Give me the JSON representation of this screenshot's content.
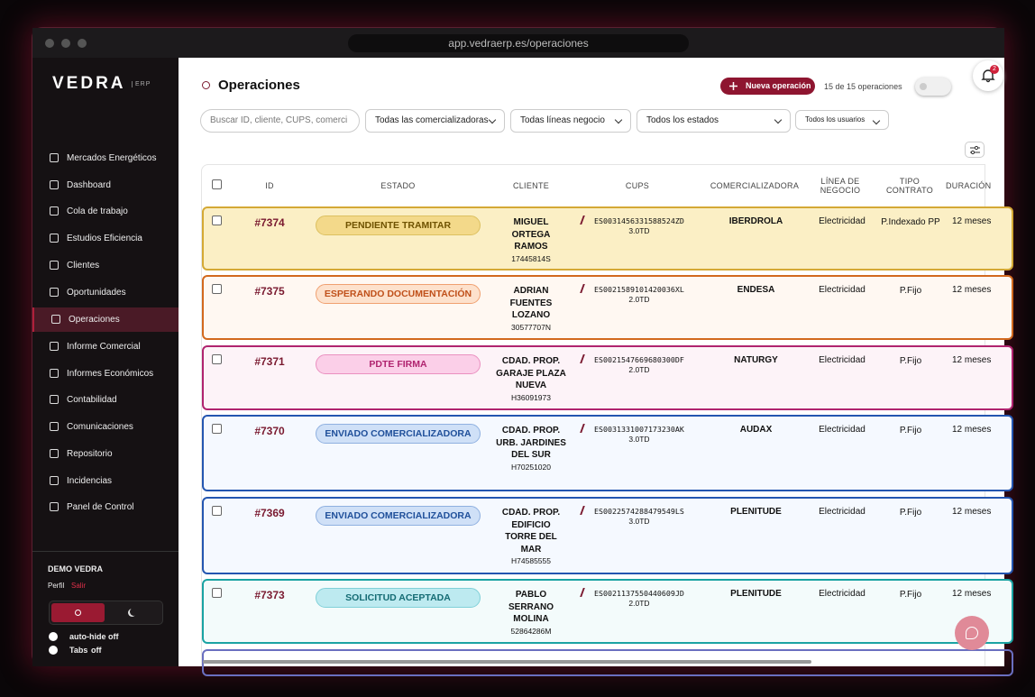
{
  "browser": {
    "url": "app.vedraerp.es/operaciones"
  },
  "sidebar": {
    "logo": "VEDRA",
    "logo_tag": "ERP",
    "menu": [
      "Mercados Energéticos",
      "Dashboard",
      "Cola de trabajo",
      "Estudios Eficiencia",
      "Clientes",
      "Oportunidades",
      "Operaciones",
      "Informe Comercial",
      "Informes Económicos",
      "Contabilidad",
      "Comunicaciones",
      "Repositorio",
      "Incidencias",
      "Panel de Control"
    ],
    "user": "DEMO VEDRA",
    "profile": "Perfil",
    "logout": "Salir",
    "settings": [
      {
        "label": "auto-hide",
        "state": "off"
      },
      {
        "label": "Tabs",
        "state": "off"
      }
    ]
  },
  "header": {
    "title": "Operaciones",
    "new_button": "Nueva operación",
    "count": "15 de 15 operaciones",
    "notifications": "2"
  },
  "filters": {
    "search": "Buscar ID, cliente, CUPS, comerci",
    "selects": [
      "Todas las comercializadoras",
      "Todas líneas negocio",
      "Todos los estados",
      "Todos los usuarios"
    ]
  },
  "table": {
    "columns": [
      "ID",
      "ESTADO",
      "CLIENTE",
      "CUPS",
      "COMERCIALIZADORA",
      "LÍNEA DE NEGOCIO",
      "TIPO CONTRATO",
      "DURACIÓN"
    ],
    "rows": [
      {
        "id": "#7374",
        "estado": "PENDIENTE TRAMITAR",
        "cliente": "MIGUEL ORTEGA RAMOS",
        "documento": "17445814S",
        "cups": "ES0031456331588524ZD",
        "tarifa": "3.0TD",
        "comercializadora": "IBERDROLA",
        "linea": "Electricidad",
        "tipo": "P.Indexado PP",
        "duracion": "12 meses"
      },
      {
        "id": "#7375",
        "estado": "ESPERANDO DOCUMENTACIÓN",
        "cliente": "ADRIAN FUENTES LOZANO",
        "documento": "30577707N",
        "cups": "ES0021589101420036XL",
        "tarifa": "2.0TD",
        "comercializadora": "ENDESA",
        "linea": "Electricidad",
        "tipo": "P.Fijo",
        "duracion": "12 meses"
      },
      {
        "id": "#7371",
        "estado": "PDTE FIRMA",
        "cliente": "CDAD. PROP. GARAJE PLAZA NUEVA",
        "documento": "H36091973",
        "cups": "ES0021547669680300DF",
        "tarifa": "2.0TD",
        "comercializadora": "NATURGY",
        "linea": "Electricidad",
        "tipo": "P.Fijo",
        "duracion": "12 meses"
      },
      {
        "id": "#7370",
        "estado": "ENVIADO COMERCIALIZADORA",
        "cliente": "CDAD. PROP. URB. JARDINES DEL SUR",
        "documento": "H70251020",
        "cups": "ES0031331007173230AK",
        "tarifa": "3.0TD",
        "comercializadora": "AUDAX",
        "linea": "Electricidad",
        "tipo": "P.Fijo",
        "duracion": "12 meses"
      },
      {
        "id": "#7369",
        "estado": "ENVIADO COMERCIALIZADORA",
        "cliente": "CDAD. PROP. EDIFICIO TORRE DEL MAR",
        "documento": "H74585555",
        "cups": "ES0022574288479549LS",
        "tarifa": "3.0TD",
        "comercializadora": "PLENITUDE",
        "linea": "Electricidad",
        "tipo": "P.Fijo",
        "duracion": "12 meses"
      },
      {
        "id": "#7373",
        "estado": "SOLICITUD ACEPTADA",
        "cliente": "PABLO SERRANO MOLINA",
        "documento": "52864286M",
        "cups": "ES0021137550440609JD",
        "tarifa": "2.0TD",
        "comercializadora": "PLENITUDE",
        "linea": "Electricidad",
        "tipo": "P.Fijo",
        "duracion": "12 meses"
      }
    ]
  }
}
